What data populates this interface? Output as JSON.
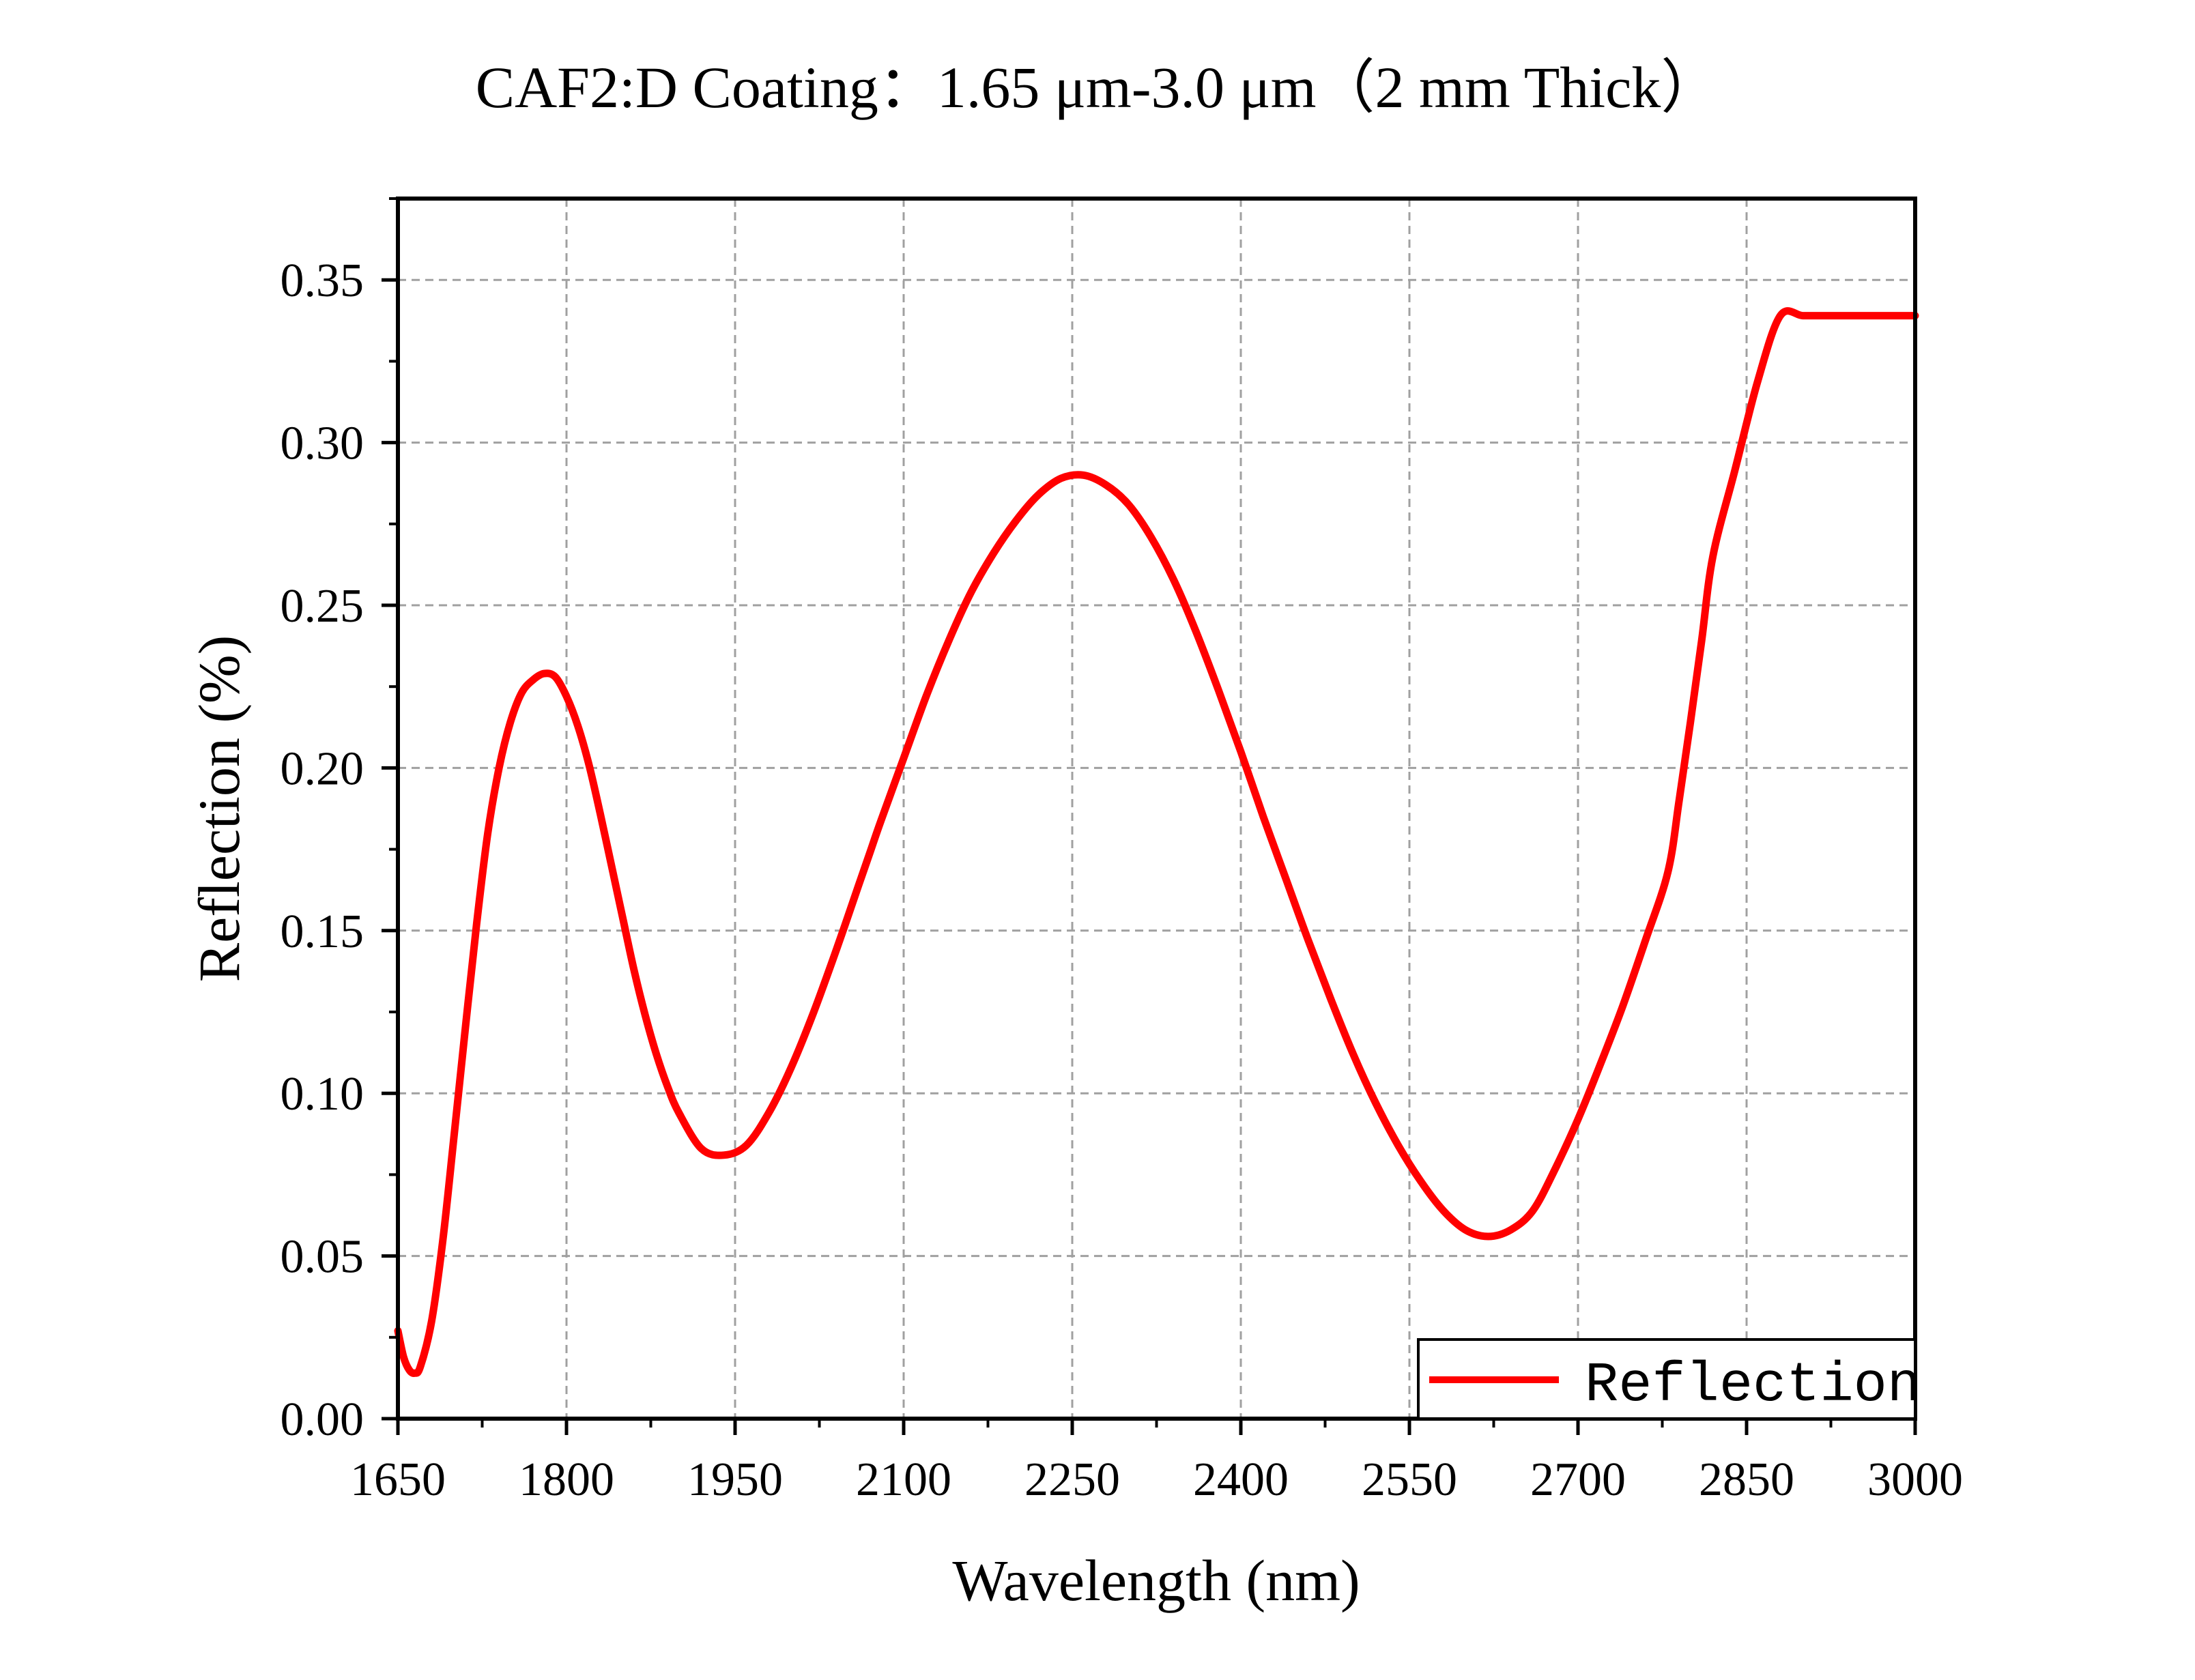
{
  "chart_data": {
    "type": "line",
    "title": "CAF2:D Coating：1.65 μm-3.0 μm（2 mm Thick）",
    "xlabel": "Wavelength (nm)",
    "ylabel": "Reflection (%)",
    "xlim": [
      1650,
      3000
    ],
    "ylim": [
      0,
      0.375
    ],
    "xticks": [
      1650,
      1800,
      1950,
      2100,
      2250,
      2400,
      2550,
      2700,
      2850,
      3000
    ],
    "xtick_labels": [
      "1650",
      "1800",
      "1950",
      "2100",
      "2250",
      "2400",
      "2550",
      "2700",
      "2850",
      "3000"
    ],
    "yticks": [
      0,
      0.05,
      0.1,
      0.15,
      0.2,
      0.25,
      0.3,
      0.35
    ],
    "ytick_labels": [
      "0.00",
      "0.05",
      "0.10",
      "0.15",
      "0.20",
      "0.25",
      "0.30",
      "0.35"
    ],
    "grid": true,
    "legend": {
      "position": "bottom-right",
      "entries": [
        "Reflection"
      ]
    },
    "colors": {
      "series": "#ff0000",
      "grid": "#a0a0a0",
      "axis": "#000000"
    },
    "series": [
      {
        "name": "Reflection",
        "x": [
          1650,
          1655,
          1660,
          1665,
          1670,
          1680,
          1690,
          1700,
          1710,
          1720,
          1730,
          1740,
          1750,
          1760,
          1770,
          1780,
          1790,
          1800,
          1810,
          1820,
          1830,
          1840,
          1850,
          1860,
          1870,
          1880,
          1890,
          1900,
          1920,
          1940,
          1960,
          1980,
          2000,
          2020,
          2040,
          2060,
          2070,
          2080,
          2100,
          2120,
          2140,
          2160,
          2180,
          2200,
          2220,
          2240,
          2260,
          2280,
          2300,
          2320,
          2340,
          2360,
          2380,
          2400,
          2420,
          2440,
          2460,
          2480,
          2500,
          2520,
          2540,
          2560,
          2580,
          2600,
          2620,
          2640,
          2660,
          2680,
          2700,
          2720,
          2740,
          2760,
          2780,
          2790,
          2800,
          2810,
          2820,
          2840,
          2860,
          2880,
          2900,
          2920,
          2940,
          2960,
          2980,
          3000
        ],
        "y": [
          0.027,
          0.019,
          0.015,
          0.014,
          0.016,
          0.03,
          0.055,
          0.087,
          0.12,
          0.152,
          0.18,
          0.2,
          0.214,
          0.223,
          0.227,
          0.229,
          0.228,
          0.222,
          0.213,
          0.201,
          0.186,
          0.17,
          0.154,
          0.138,
          0.124,
          0.112,
          0.102,
          0.094,
          0.083,
          0.081,
          0.084,
          0.094,
          0.108,
          0.125,
          0.144,
          0.164,
          0.174,
          0.184,
          0.203,
          0.222,
          0.239,
          0.254,
          0.266,
          0.276,
          0.284,
          0.289,
          0.29,
          0.287,
          0.281,
          0.271,
          0.258,
          0.242,
          0.224,
          0.205,
          0.185,
          0.166,
          0.147,
          0.129,
          0.112,
          0.097,
          0.084,
          0.073,
          0.064,
          0.058,
          0.056,
          0.058,
          0.064,
          0.077,
          0.092,
          0.109,
          0.127,
          0.147,
          0.168,
          0.19,
          0.214,
          0.239,
          0.265,
          0.292,
          0.319,
          0.339,
          0.339,
          0.339,
          0.339,
          0.339,
          0.339,
          0.339
        ]
      }
    ]
  }
}
